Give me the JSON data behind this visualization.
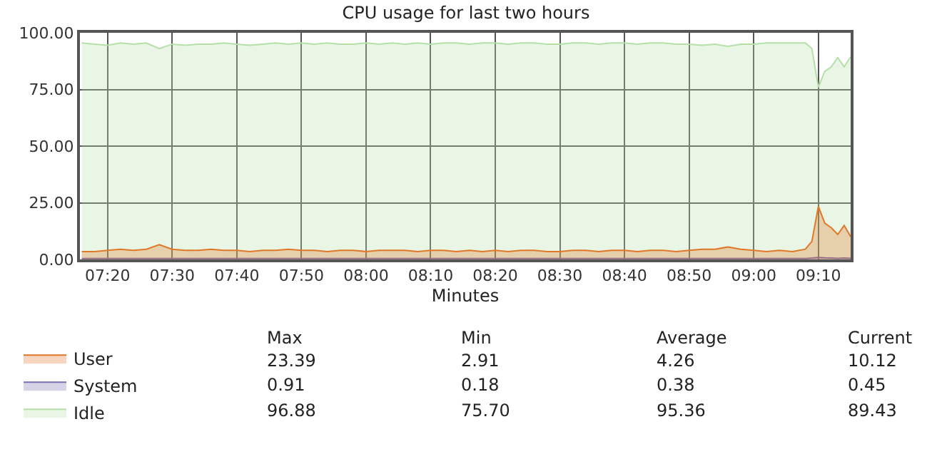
{
  "chart_data": {
    "type": "area",
    "title": "CPU usage for last two hours",
    "xlabel": "Minutes",
    "x": [
      7.2667,
      7.3,
      7.3333,
      7.3667,
      7.4,
      7.4333,
      7.4667,
      7.5,
      7.5333,
      7.5667,
      7.6,
      7.6333,
      7.6667,
      7.7,
      7.7333,
      7.7667,
      7.8,
      7.8333,
      7.8667,
      7.9,
      7.9333,
      7.9667,
      8,
      8.0333,
      8.0667,
      8.1,
      8.1333,
      8.1667,
      8.2,
      8.2333,
      8.2667,
      8.3,
      8.3333,
      8.3667,
      8.4,
      8.4333,
      8.4667,
      8.5,
      8.5333,
      8.5667,
      8.6,
      8.6333,
      8.6667,
      8.7,
      8.7333,
      8.7667,
      8.8,
      8.8333,
      8.8667,
      8.9,
      8.9333,
      8.9667,
      9,
      9.0333,
      9.0667,
      9.1,
      9.1333,
      9.15,
      9.1667,
      9.1833,
      9.2,
      9.2167,
      9.2333,
      9.25
    ],
    "series": [
      {
        "name": "Idle",
        "color": "#b5e0a8",
        "values": [
          95.5,
          95,
          94.5,
          95.5,
          95,
          95.5,
          93,
          95,
          94.5,
          95,
          95,
          95.5,
          95,
          94.5,
          95,
          95.5,
          95,
          95.5,
          95,
          95.5,
          95,
          95,
          95.5,
          95,
          95.5,
          95,
          95.5,
          95,
          95.5,
          95.5,
          95,
          95.5,
          95.5,
          95,
          95.5,
          95.5,
          95,
          95,
          95.5,
          95.5,
          95,
          95.5,
          95.5,
          95,
          95.5,
          95.5,
          95,
          95,
          94.5,
          95,
          94,
          95,
          95,
          95.5,
          95.5,
          95.5,
          95.5,
          93,
          76,
          83,
          85,
          89,
          85,
          89.4
        ]
      },
      {
        "name": "System",
        "color": "#7a6fb0",
        "values": [
          0.4,
          0.4,
          0.4,
          0.4,
          0.4,
          0.4,
          0.4,
          0.4,
          0.4,
          0.4,
          0.4,
          0.4,
          0.4,
          0.4,
          0.4,
          0.4,
          0.4,
          0.4,
          0.4,
          0.4,
          0.4,
          0.4,
          0.4,
          0.4,
          0.4,
          0.4,
          0.4,
          0.4,
          0.4,
          0.4,
          0.4,
          0.4,
          0.4,
          0.4,
          0.4,
          0.4,
          0.4,
          0.4,
          0.4,
          0.4,
          0.4,
          0.4,
          0.4,
          0.4,
          0.4,
          0.4,
          0.4,
          0.4,
          0.4,
          0.4,
          0.4,
          0.4,
          0.4,
          0.4,
          0.4,
          0.4,
          0.4,
          0.6,
          0.9,
          0.7,
          0.6,
          0.5,
          0.6,
          0.5
        ]
      },
      {
        "name": "User",
        "color": "#e07828",
        "values": [
          3.5,
          3.5,
          4,
          4.5,
          4,
          4.5,
          6.5,
          4.5,
          4,
          4,
          4.5,
          4,
          4,
          3.5,
          4,
          4,
          4.5,
          4,
          4,
          3.5,
          4,
          4,
          3.5,
          4,
          4,
          4,
          3.5,
          4,
          4,
          3.5,
          4,
          3.5,
          4,
          3.5,
          4,
          4,
          3.5,
          3.5,
          4,
          4,
          3.5,
          4,
          4,
          3.5,
          4,
          4,
          3.5,
          4,
          4.5,
          4.5,
          5.5,
          4.5,
          4,
          3.5,
          4,
          3.5,
          4.5,
          8,
          23.4,
          16,
          14,
          11,
          15,
          10.1
        ]
      }
    ],
    "xlim": [
      7.262,
      9.25
    ],
    "xticks": [
      {
        "value": 7.3333,
        "label": "07:20"
      },
      {
        "value": 7.5,
        "label": "07:30"
      },
      {
        "value": 7.6667,
        "label": "07:40"
      },
      {
        "value": 7.8333,
        "label": "07:50"
      },
      {
        "value": 8,
        "label": "08:00"
      },
      {
        "value": 8.1667,
        "label": "08:10"
      },
      {
        "value": 8.3333,
        "label": "08:20"
      },
      {
        "value": 8.5,
        "label": "08:30"
      },
      {
        "value": 8.6667,
        "label": "08:40"
      },
      {
        "value": 8.8333,
        "label": "08:50"
      },
      {
        "value": 9,
        "label": "09:00"
      },
      {
        "value": 9.1667,
        "label": "09:10"
      }
    ],
    "ylim": [
      0,
      100
    ],
    "yticks": [
      {
        "value": 0,
        "label": "0.00"
      },
      {
        "value": 25,
        "label": "25.00"
      },
      {
        "value": 50,
        "label": "50.00"
      },
      {
        "value": 75,
        "label": "75.00"
      },
      {
        "value": 100,
        "label": "100.00"
      }
    ],
    "grid": true,
    "legend": "bottom left",
    "marker": "none",
    "annotations": [
      "Max",
      "Min",
      "Average",
      "Current",
      "23.39",
      "2.91",
      "4.26",
      "10.12",
      "0.91",
      "0.18",
      "0.38",
      "0.45",
      "96.88",
      "75.70",
      "95.36",
      "89.43"
    ]
  }
}
